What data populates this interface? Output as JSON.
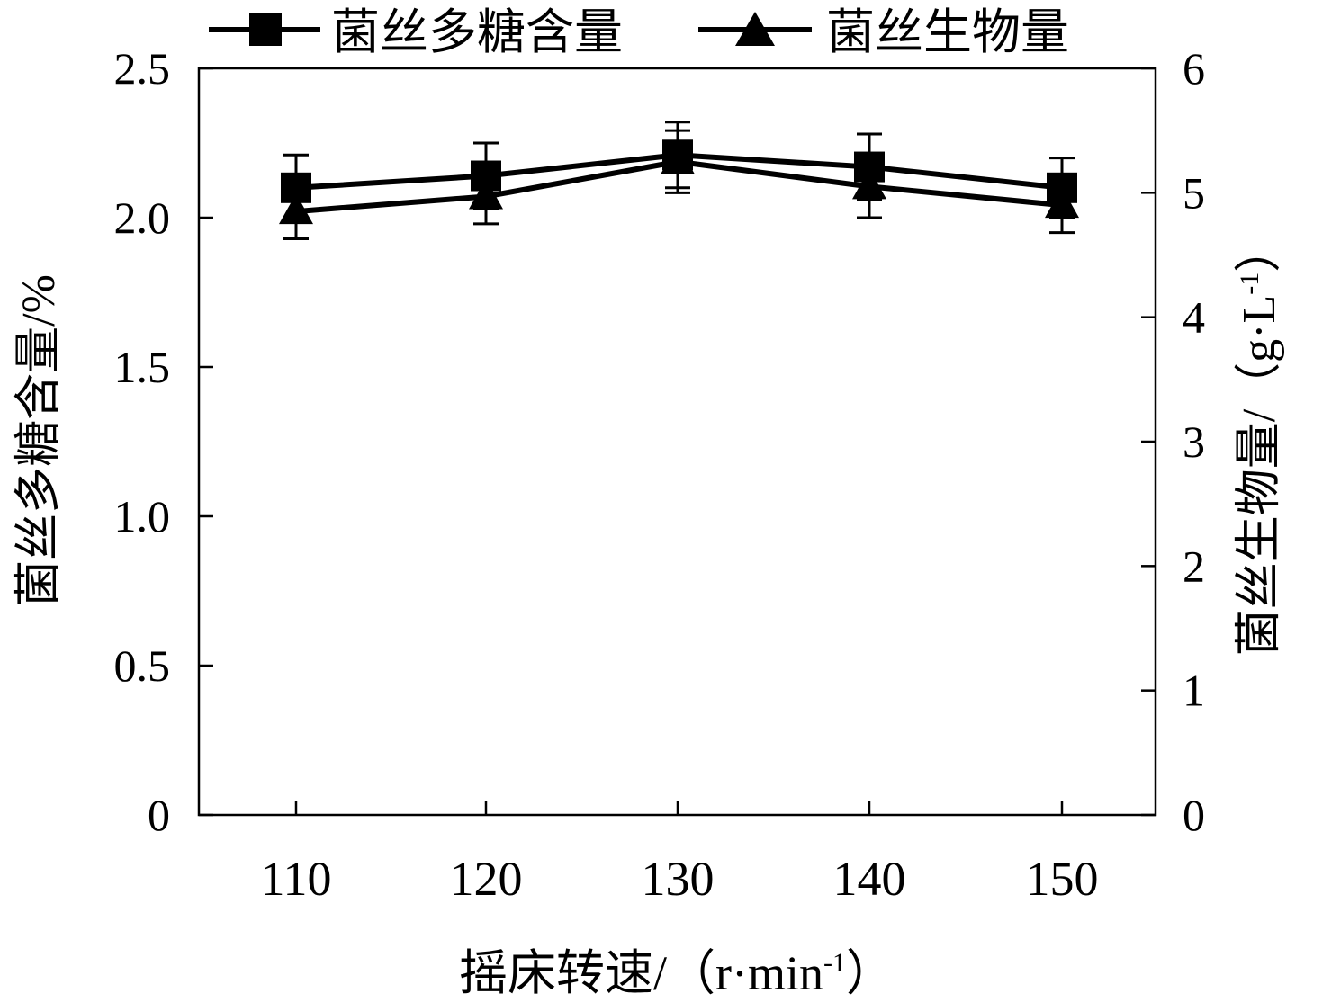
{
  "chart_data": {
    "type": "line",
    "x": [
      110,
      120,
      130,
      140,
      150
    ],
    "xticks": [
      "110",
      "120",
      "130",
      "140",
      "150"
    ],
    "xlabel": "摇床转速/（r·min⁻¹）",
    "xlabel_main": "摇床转速/（r",
    "xlabel_mid": "·",
    "xlabel_unit": "min",
    "xlabel_sup": "-1",
    "xlabel_close": "）",
    "y_left": {
      "label": "菌丝多糖含量/%",
      "ylim": [
        0,
        2.5
      ],
      "ticks": [
        "0",
        "0.5",
        "1.0",
        "1.5",
        "2.0",
        "2.5"
      ],
      "tick_values": [
        0,
        0.5,
        1.0,
        1.5,
        2.0,
        2.5
      ]
    },
    "y_right": {
      "label": "菌丝生物量/（g·L⁻¹）",
      "label_main": "菌丝生物量/（g",
      "label_mid": "·",
      "label_unit": "L",
      "label_sup": "-1",
      "label_close": "）",
      "ylim": [
        0,
        6
      ],
      "ticks": [
        "0",
        "1",
        "2",
        "3",
        "4",
        "5",
        "6"
      ],
      "tick_values": [
        0,
        1,
        2,
        3,
        4,
        5,
        6
      ]
    },
    "series": [
      {
        "name": "菌丝多糖含量",
        "marker": "square",
        "axis": "left",
        "values": [
          2.1,
          2.14,
          2.21,
          2.17,
          2.1
        ],
        "errors": [
          0.11,
          0.11,
          0.11,
          0.11,
          0.1
        ]
      },
      {
        "name": "菌丝生物量",
        "marker": "triangle",
        "axis": "right",
        "values": [
          4.85,
          4.97,
          5.25,
          5.05,
          4.9
        ],
        "errors": [
          0.22,
          0.22,
          0.25,
          0.25,
          0.22
        ]
      }
    ],
    "legend": "top",
    "grid": false,
    "colors": {
      "line": "#000000",
      "background": "#ffffff"
    }
  }
}
